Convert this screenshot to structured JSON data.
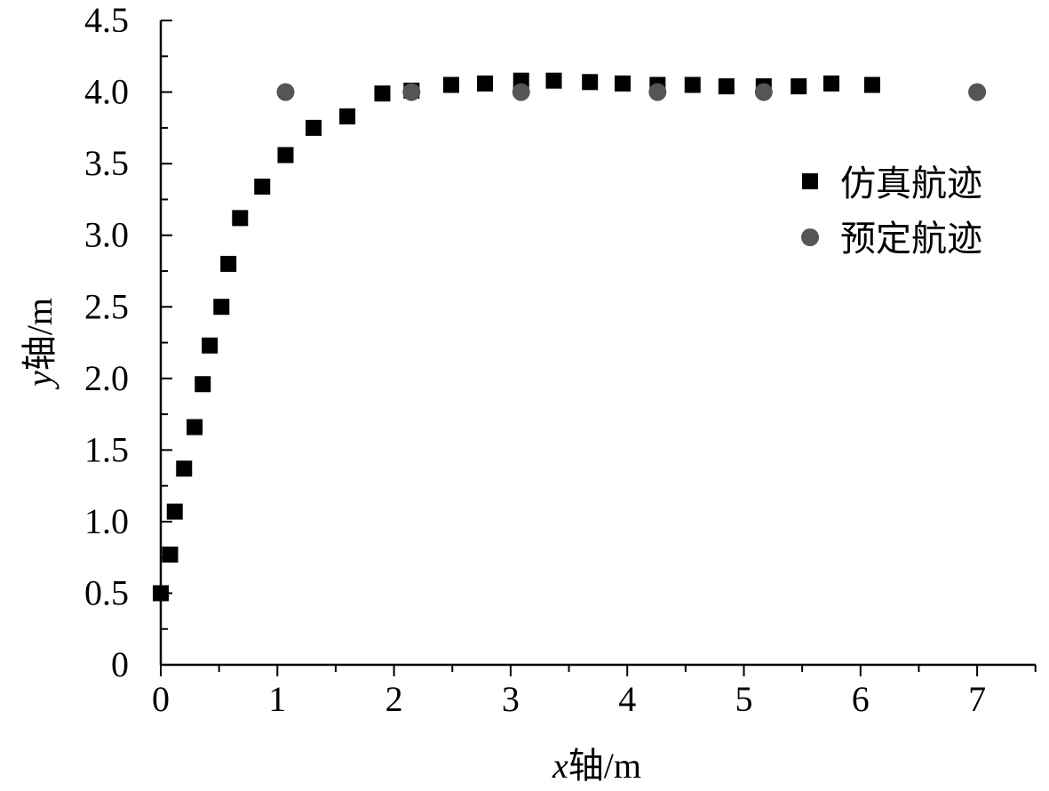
{
  "chart_data": {
    "type": "scatter",
    "xlabel": {
      "var": "x",
      "rest": "轴/m"
    },
    "ylabel": {
      "var": "y",
      "rest": "轴/m"
    },
    "xlim": [
      0,
      7.5
    ],
    "ylim": [
      0,
      4.5
    ],
    "x_ticks": [
      0,
      1,
      2,
      3,
      4,
      5,
      6,
      7
    ],
    "y_ticks": [
      0,
      0.5,
      1.0,
      1.5,
      2.0,
      2.5,
      3.0,
      3.5,
      4.0,
      4.5
    ],
    "x_tick_labels": [
      "0",
      "1",
      "2",
      "3",
      "4",
      "5",
      "6",
      "7"
    ],
    "y_tick_labels": [
      "0",
      "0.5",
      "1.0",
      "1.5",
      "2.0",
      "2.5",
      "3.0",
      "3.5",
      "4.0",
      "4.5"
    ],
    "grid": false,
    "legend_position": "top-right",
    "series": [
      {
        "name": "仿真航迹",
        "marker": "square",
        "color": "#000000",
        "points": [
          [
            0.0,
            0.5
          ],
          [
            0.08,
            0.77
          ],
          [
            0.12,
            1.07
          ],
          [
            0.2,
            1.37
          ],
          [
            0.29,
            1.66
          ],
          [
            0.36,
            1.96
          ],
          [
            0.42,
            2.23
          ],
          [
            0.52,
            2.5
          ],
          [
            0.58,
            2.8
          ],
          [
            0.68,
            3.12
          ],
          [
            0.87,
            3.34
          ],
          [
            1.07,
            3.56
          ],
          [
            1.31,
            3.75
          ],
          [
            1.6,
            3.83
          ],
          [
            1.9,
            3.99
          ],
          [
            2.15,
            4.01
          ],
          [
            2.49,
            4.05
          ],
          [
            2.78,
            4.06
          ],
          [
            3.09,
            4.08
          ],
          [
            3.37,
            4.08
          ],
          [
            3.68,
            4.07
          ],
          [
            3.96,
            4.06
          ],
          [
            4.26,
            4.05
          ],
          [
            4.56,
            4.05
          ],
          [
            4.85,
            4.04
          ],
          [
            5.17,
            4.04
          ],
          [
            5.47,
            4.04
          ],
          [
            5.75,
            4.06
          ],
          [
            6.1,
            4.05
          ]
        ]
      },
      {
        "name": "预定航迹",
        "marker": "circle",
        "color": "#555555",
        "points": [
          [
            1.07,
            4.0
          ],
          [
            2.15,
            4.0
          ],
          [
            3.09,
            4.0
          ],
          [
            4.26,
            4.0
          ],
          [
            5.17,
            4.0
          ],
          [
            7.0,
            4.0
          ]
        ]
      }
    ]
  }
}
